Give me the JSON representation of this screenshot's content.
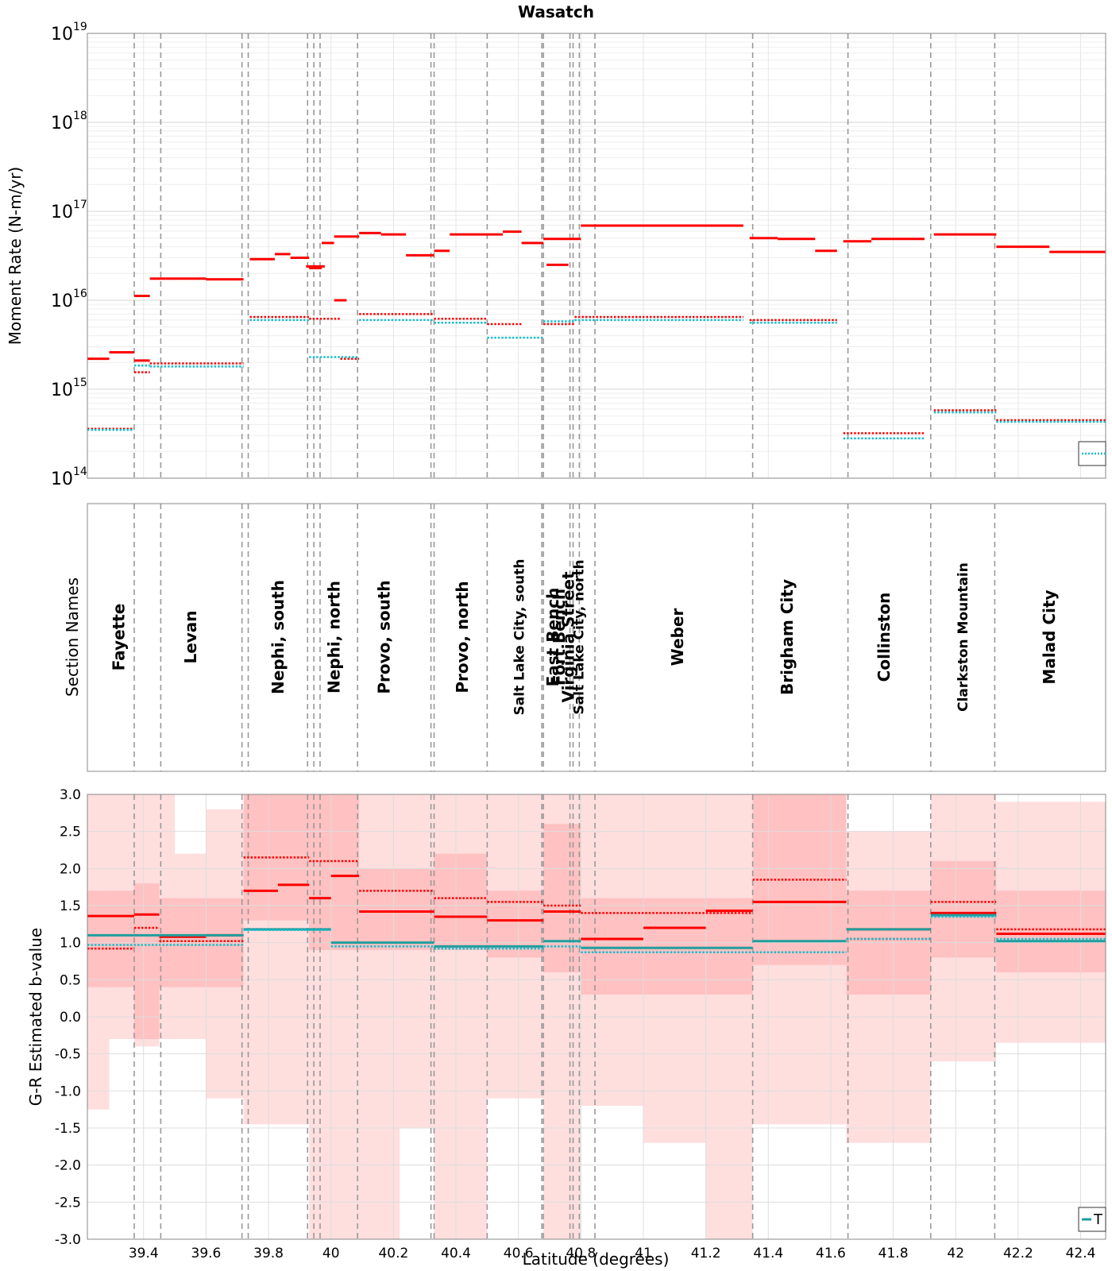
{
  "chart_data": [
    {
      "type": "line",
      "title": "Wasatch",
      "xlabel": "",
      "ylabel": "Moment Rate (N-m/yr)",
      "yscale": "log",
      "ylim": [
        100000000000000.0,
        1e+19
      ],
      "xlim": [
        39.22,
        42.48
      ],
      "ytick_labels": [
        "10",
        "10",
        "10",
        "10",
        "10",
        "10"
      ],
      "ytick_exponents": [
        "14",
        "15",
        "16",
        "17",
        "18",
        "19"
      ],
      "series": [
        {
          "name": "total-solid",
          "color": "#ff0000",
          "style": "solid",
          "segments": [
            [
              39.22,
              39.29,
              2200000000000000.0
            ],
            [
              39.29,
              39.37,
              2600000000000000.0
            ],
            [
              39.37,
              39.42,
              1.12e+16
            ],
            [
              39.42,
              39.47,
              1.75e+16
            ],
            [
              39.47,
              39.6,
              1.75e+16
            ],
            [
              39.6,
              39.72,
              1.72e+16
            ],
            [
              39.74,
              39.82,
              2.9e+16
            ],
            [
              39.82,
              39.87,
              3.3e+16
            ],
            [
              39.87,
              39.93,
              3e+16
            ],
            [
              39.93,
              39.97,
              2.3e+16
            ],
            [
              39.97,
              40.01,
              4.4e+16
            ],
            [
              40.01,
              40.09,
              5.2e+16
            ],
            [
              40.09,
              40.16,
              5.7e+16
            ],
            [
              40.16,
              40.24,
              5.5e+16
            ],
            [
              40.24,
              40.33,
              3.2e+16
            ],
            [
              40.33,
              40.38,
              3.6e+16
            ],
            [
              40.38,
              40.55,
              5.5e+16
            ],
            [
              40.55,
              40.61,
              5.9e+16
            ],
            [
              40.61,
              40.68,
              4.4e+16
            ],
            [
              40.68,
              40.8,
              4.9e+16
            ],
            [
              40.8,
              41.32,
              6.9e+16
            ],
            [
              41.34,
              41.43,
              5e+16
            ],
            [
              41.43,
              41.55,
              4.9e+16
            ],
            [
              41.55,
              41.62,
              3.6e+16
            ],
            [
              41.64,
              41.73,
              4.6e+16
            ],
            [
              41.73,
              41.9,
              4.9e+16
            ],
            [
              41.93,
              42.13,
              5.5e+16
            ],
            [
              42.13,
              42.3,
              4e+16
            ],
            [
              42.3,
              42.48,
              3.5e+16
            ]
          ]
        },
        {
          "name": "seg2-solid",
          "color": "#ff0000",
          "style": "solid",
          "segments": [
            [
              39.37,
              39.42,
              2100000000000000.0
            ],
            [
              39.92,
              39.98,
              2.4e+16
            ],
            [
              40.01,
              40.05,
              1e+16
            ],
            [
              40.69,
              40.76,
              2.5e+16
            ]
          ]
        },
        {
          "name": "red-dotted",
          "color": "#ff0000",
          "style": "dotted",
          "segments": [
            [
              39.22,
              39.37,
              360000000000000.0
            ],
            [
              39.37,
              39.42,
              1550000000000000.0
            ],
            [
              39.42,
              39.72,
              1950000000000000.0
            ],
            [
              39.74,
              39.93,
              6500000000000000.0
            ],
            [
              39.93,
              40.03,
              6200000000000000.0
            ],
            [
              40.03,
              40.09,
              2200000000000000.0
            ],
            [
              40.09,
              40.33,
              7000000000000000.0
            ],
            [
              40.33,
              40.5,
              6200000000000000.0
            ],
            [
              40.5,
              40.61,
              5400000000000000.0
            ],
            [
              40.68,
              40.78,
              5400000000000000.0
            ],
            [
              40.78,
              41.32,
              6500000000000000.0
            ],
            [
              41.34,
              41.62,
              6000000000000000.0
            ],
            [
              41.64,
              41.9,
              320000000000000.0
            ],
            [
              41.93,
              42.13,
              580000000000000.0
            ],
            [
              42.13,
              42.48,
              450000000000000.0
            ]
          ]
        },
        {
          "name": "teal-dotted",
          "color": "#17becf",
          "style": "dotted",
          "segments": [
            [
              39.22,
              39.37,
              350000000000000.0
            ],
            [
              39.37,
              39.42,
              1850000000000000.0
            ],
            [
              39.42,
              39.72,
              1800000000000000.0
            ],
            [
              39.74,
              39.93,
              6000000000000000.0
            ],
            [
              39.93,
              40.09,
              2300000000000000.0
            ],
            [
              40.09,
              40.33,
              6000000000000000.0
            ],
            [
              40.33,
              40.5,
              5600000000000000.0
            ],
            [
              40.5,
              40.68,
              3800000000000000.0
            ],
            [
              40.68,
              40.78,
              5800000000000000.0
            ],
            [
              40.78,
              41.32,
              6000000000000000.0
            ],
            [
              41.34,
              41.62,
              5600000000000000.0
            ],
            [
              41.64,
              41.9,
              280000000000000.0
            ],
            [
              41.93,
              42.13,
              550000000000000.0
            ],
            [
              42.13,
              42.48,
              430000000000000.0
            ]
          ]
        }
      ]
    },
    {
      "type": "table",
      "ylabel": "Section Names",
      "sections": [
        {
          "name": "Fayette",
          "x": 39.32
        },
        {
          "name": "Levan",
          "x": 39.55
        },
        {
          "name": "Nephi, south",
          "x": 39.83
        },
        {
          "name": "Nephi, north",
          "x": 40.01
        },
        {
          "name": "Provo, south",
          "x": 40.17
        },
        {
          "name": "Provo, north",
          "x": 40.42
        },
        {
          "name": "Salt Lake City, south",
          "x": 40.6
        },
        {
          "name": "East Bench",
          "x": 40.71
        },
        {
          "name": "Fort Bench",
          "x": 40.73
        },
        {
          "name": "Virginia Street",
          "x": 40.76
        },
        {
          "name": "Salt Lake City, north",
          "x": 40.79
        },
        {
          "name": "Weber",
          "x": 41.11
        },
        {
          "name": "Brigham City",
          "x": 41.46
        },
        {
          "name": "Collinston",
          "x": 41.77
        },
        {
          "name": "Clarkston Mountain",
          "x": 42.02
        },
        {
          "name": "Malad City",
          "x": 42.3
        }
      ],
      "boundaries": [
        39.37,
        39.455,
        39.715,
        39.735,
        39.925,
        39.945,
        39.965,
        40.085,
        40.32,
        40.33,
        40.5,
        40.675,
        40.68,
        40.765,
        40.775,
        40.795,
        40.845,
        41.35,
        41.655,
        41.92,
        42.125
      ]
    },
    {
      "type": "area",
      "xlabel": "Latitude (degrees)",
      "ylabel": "G-R Estimated b-value",
      "ylim": [
        -3.0,
        3.0
      ],
      "ytick_labels": [
        "3.0",
        "2.5",
        "2.0",
        "1.5",
        "1.0",
        "0.5",
        "0.0",
        "-0.5",
        "-1.0",
        "-1.5",
        "-2.0",
        "-2.5",
        "-3.0"
      ],
      "xtick_labels": [
        "39.4",
        "39.6",
        "39.8",
        "40",
        "40.2",
        "40.4",
        "40.6",
        "40.8",
        "41",
        "41.2",
        "41.4",
        "41.6",
        "41.8",
        "42",
        "42.2",
        "42.4"
      ],
      "legend_entry": "T",
      "bands": [
        [
          39.22,
          39.29,
          -1.25,
          3.0
        ],
        [
          39.29,
          39.42,
          -0.3,
          3.0
        ],
        [
          39.42,
          39.5,
          -0.3,
          3.0
        ],
        [
          39.5,
          39.6,
          -0.3,
          2.2
        ],
        [
          39.6,
          39.72,
          -1.1,
          2.8
        ],
        [
          39.72,
          39.93,
          -1.45,
          3.0
        ],
        [
          39.93,
          40.09,
          -3.0,
          3.0
        ],
        [
          40.09,
          40.22,
          -3.0,
          3.0
        ],
        [
          40.22,
          40.33,
          -1.5,
          3.0
        ],
        [
          40.33,
          40.5,
          -3.0,
          3.0
        ],
        [
          40.5,
          40.68,
          -1.1,
          3.0
        ],
        [
          40.68,
          40.8,
          -3.0,
          3.0
        ],
        [
          40.8,
          41.0,
          -1.2,
          3.0
        ],
        [
          41.0,
          41.2,
          -1.7,
          3.0
        ],
        [
          41.2,
          41.35,
          -3.0,
          3.0
        ],
        [
          41.35,
          41.65,
          -1.45,
          3.0
        ],
        [
          41.65,
          41.92,
          -1.7,
          2.5
        ],
        [
          41.92,
          42.13,
          -0.6,
          3.0
        ],
        [
          42.13,
          42.48,
          -0.35,
          2.9
        ]
      ],
      "inner_bands": [
        [
          39.22,
          39.37,
          0.4,
          1.7
        ],
        [
          39.37,
          39.45,
          -0.4,
          1.8
        ],
        [
          39.45,
          39.72,
          0.4,
          1.6
        ],
        [
          39.72,
          39.93,
          1.3,
          3.0
        ],
        [
          39.93,
          40.09,
          0.9,
          3.0
        ],
        [
          40.09,
          40.33,
          0.9,
          2.0
        ],
        [
          40.33,
          40.5,
          0.9,
          2.2
        ],
        [
          40.5,
          40.68,
          0.8,
          1.7
        ],
        [
          40.68,
          40.8,
          0.6,
          2.6
        ],
        [
          40.8,
          41.35,
          0.3,
          1.6
        ],
        [
          41.35,
          41.65,
          0.7,
          3.0
        ],
        [
          41.65,
          41.92,
          0.3,
          1.7
        ],
        [
          41.92,
          42.13,
          0.8,
          2.1
        ],
        [
          42.13,
          42.48,
          0.6,
          1.7
        ]
      ],
      "series": [
        {
          "name": "red-solid",
          "color": "#ff0000",
          "style": "solid",
          "segments": [
            [
              39.22,
              39.37,
              1.36
            ],
            [
              39.37,
              39.45,
              1.38
            ],
            [
              39.45,
              39.6,
              1.08
            ],
            [
              39.6,
              39.72,
              1.1
            ],
            [
              39.72,
              39.83,
              1.7
            ],
            [
              39.83,
              39.93,
              1.78
            ],
            [
              39.93,
              40.0,
              1.6
            ],
            [
              40.0,
              40.09,
              1.9
            ],
            [
              40.09,
              40.33,
              1.42
            ],
            [
              40.33,
              40.5,
              1.35
            ],
            [
              40.5,
              40.68,
              1.3
            ],
            [
              40.68,
              40.8,
              1.42
            ],
            [
              40.8,
              41.0,
              1.05
            ],
            [
              41.0,
              41.2,
              1.2
            ],
            [
              41.2,
              41.35,
              1.43
            ],
            [
              41.35,
              41.65,
              1.55
            ],
            [
              41.65,
              41.92,
              1.18
            ],
            [
              41.92,
              42.13,
              1.4
            ],
            [
              42.13,
              42.48,
              1.12
            ]
          ]
        },
        {
          "name": "red-dotted",
          "color": "#ff0000",
          "style": "dotted",
          "segments": [
            [
              39.22,
              39.37,
              0.92
            ],
            [
              39.37,
              39.45,
              1.2
            ],
            [
              39.45,
              39.72,
              1.02
            ],
            [
              39.72,
              39.93,
              2.15
            ],
            [
              39.93,
              40.09,
              2.1
            ],
            [
              40.09,
              40.33,
              1.7
            ],
            [
              40.33,
              40.5,
              1.6
            ],
            [
              40.5,
              40.68,
              1.55
            ],
            [
              40.68,
              40.8,
              1.5
            ],
            [
              40.8,
              41.35,
              1.4
            ],
            [
              41.35,
              41.65,
              1.85
            ],
            [
              41.65,
              41.92,
              1.05
            ],
            [
              41.92,
              42.13,
              1.55
            ],
            [
              42.13,
              42.48,
              1.18
            ]
          ]
        },
        {
          "name": "teal-solid",
          "color": "#1f9e9e",
          "style": "solid",
          "segments": [
            [
              39.22,
              39.72,
              1.1
            ],
            [
              39.72,
              40.0,
              1.18
            ],
            [
              40.0,
              40.33,
              1.0
            ],
            [
              40.33,
              40.68,
              0.95
            ],
            [
              40.68,
              40.8,
              1.02
            ],
            [
              40.8,
              41.35,
              0.93
            ],
            [
              41.35,
              41.65,
              1.02
            ],
            [
              41.65,
              41.92,
              1.18
            ],
            [
              41.92,
              42.13,
              1.37
            ],
            [
              42.13,
              42.48,
              1.02
            ]
          ]
        },
        {
          "name": "teal-dotted",
          "color": "#17becf",
          "style": "dotted",
          "segments": [
            [
              39.22,
              39.72,
              0.97
            ],
            [
              39.72,
              40.0,
              1.17
            ],
            [
              40.0,
              40.33,
              0.95
            ],
            [
              40.33,
              40.68,
              0.92
            ],
            [
              40.68,
              40.8,
              0.95
            ],
            [
              40.8,
              41.35,
              0.87
            ],
            [
              41.35,
              41.65,
              0.87
            ],
            [
              41.65,
              41.92,
              1.05
            ],
            [
              41.92,
              42.13,
              1.35
            ],
            [
              42.13,
              42.48,
              1.05
            ]
          ]
        }
      ]
    }
  ]
}
